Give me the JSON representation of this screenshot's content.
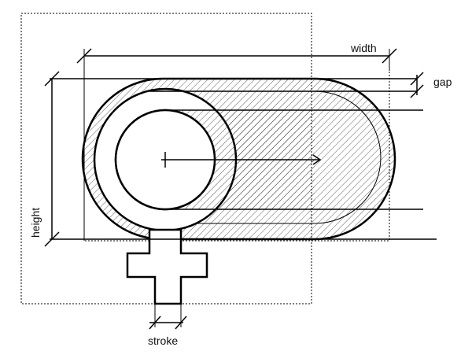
{
  "labels": {
    "width": "width",
    "gap": "gap",
    "height": "height",
    "stroke": "stroke"
  },
  "colors": {
    "ink": "#000000",
    "background": "#ffffff",
    "hatch": "#333333"
  }
}
